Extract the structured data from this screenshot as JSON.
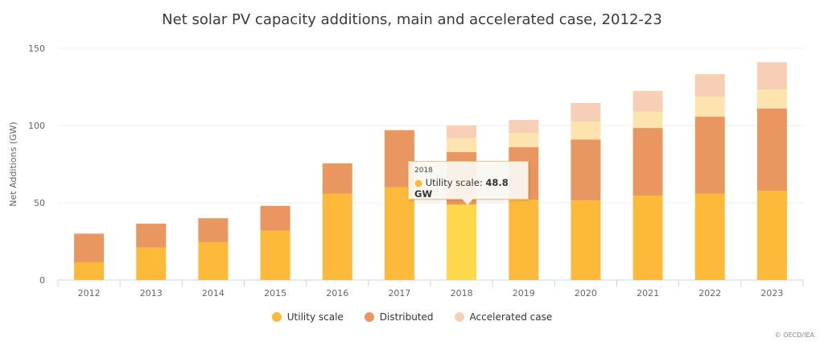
{
  "chart_data": {
    "type": "bar",
    "stacked": true,
    "title": "Net solar PV capacity additions, main and accelerated case, 2012-23",
    "xlabel": "",
    "ylabel": "Net Additions (GW)",
    "ylim": [
      0,
      150
    ],
    "yticks": [
      0,
      50,
      100,
      150
    ],
    "grid": true,
    "legend_position": "bottom",
    "categories": [
      "2012",
      "2013",
      "2014",
      "2015",
      "2016",
      "2017",
      "2018",
      "2019",
      "2020",
      "2021",
      "2022",
      "2023"
    ],
    "series": [
      {
        "name": "Utility scale",
        "color": "#fdb93a",
        "values": [
          11.5,
          21,
          24.5,
          32,
          56,
          60,
          48.8,
          52,
          51.5,
          54.7,
          56,
          57.8
        ]
      },
      {
        "name": "Distributed",
        "color": "#ea9660",
        "values": [
          18.5,
          15.5,
          15.5,
          16,
          19.5,
          37,
          34,
          34,
          39.5,
          43.7,
          49.7,
          53.2
        ]
      },
      {
        "name": "Accelerated case",
        "color": "#fde3ad",
        "values": [
          0,
          0,
          0,
          0,
          0,
          0,
          9,
          9.3,
          11.6,
          10.5,
          13,
          12.4
        ]
      },
      {
        "name": "Accelerated case",
        "color": "#f6cfb6",
        "values": [
          0,
          0,
          0,
          0,
          0,
          0,
          8.3,
          8.3,
          12,
          13.5,
          14.6,
          17.6
        ]
      }
    ],
    "legend": [
      {
        "label": "Utility scale",
        "color": "#fdb93a"
      },
      {
        "label": "Distributed",
        "color": "#ea9660"
      },
      {
        "label": "Accelerated case",
        "color": "#f6cfb6"
      }
    ],
    "highlight": {
      "category": "2018",
      "series": "Utility scale",
      "color": "#fdd84a"
    }
  },
  "tooltip": {
    "year": "2018",
    "label": "Utility scale: ",
    "value": "48.8 GW"
  },
  "credit": "© OECD/IEA"
}
